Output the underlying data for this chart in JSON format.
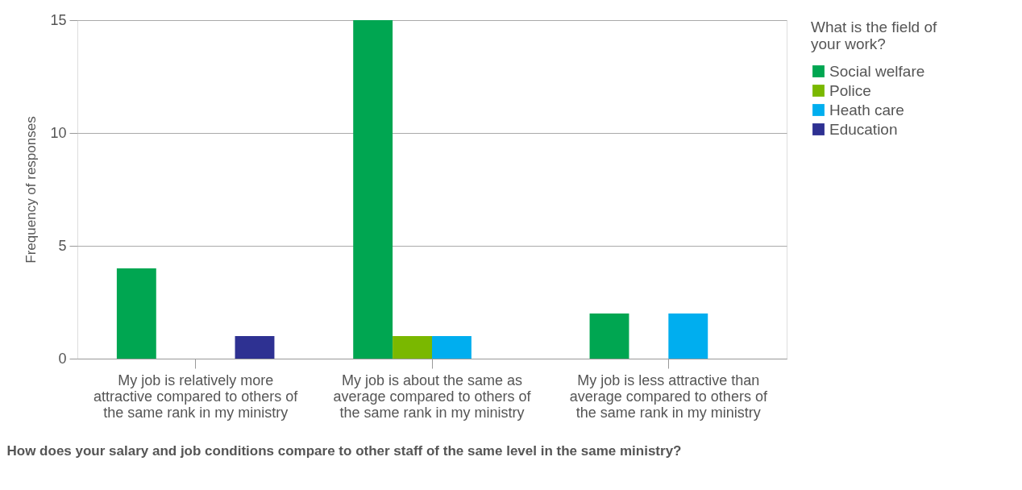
{
  "chart_data": {
    "type": "bar",
    "xlabel": "How does your salary and job conditions compare to other staff of the same level in the same ministry?",
    "ylabel": "Frequency of responses",
    "legend_title": "What is the field of your work?",
    "categories": [
      "My job is relatively more attractive compared to others of the same rank in my ministry",
      "My job is about the same as average compared to others of the same rank in my ministry",
      "My job is less attractive than average compared to others of the same rank in my ministry"
    ],
    "series": [
      {
        "name": "Social welfare",
        "color": "#00a651",
        "values": [
          4,
          15,
          2
        ]
      },
      {
        "name": "Police",
        "color": "#7ab800",
        "values": [
          0,
          1,
          0
        ]
      },
      {
        "name": "Heath care",
        "color": "#00aeef",
        "values": [
          0,
          1,
          2
        ]
      },
      {
        "name": "Education",
        "color": "#2e3192",
        "values": [
          1,
          0,
          0
        ]
      }
    ],
    "ylim": [
      0,
      15
    ],
    "yticks": [
      0,
      5,
      10,
      15
    ],
    "grid": "y",
    "legend": "top right"
  }
}
